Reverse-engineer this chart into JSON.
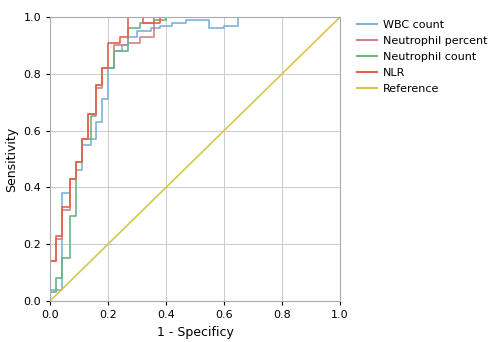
{
  "title": "",
  "xlabel": "1 - Specificy",
  "ylabel": "Sensitivity",
  "xlim": [
    0.0,
    1.0
  ],
  "ylim": [
    0.0,
    1.0
  ],
  "xticks": [
    0.0,
    0.2,
    0.4,
    0.6,
    0.8,
    1.0
  ],
  "yticks": [
    0.0,
    0.2,
    0.4,
    0.6,
    0.8,
    1.0
  ],
  "legend_labels": [
    "WBC count",
    "Neutrophil percent",
    "Neutrophil count",
    "NLR",
    "Reference"
  ],
  "colors": {
    "WBC count": "#7eb3d8",
    "Neutrophil percent": "#d4808a",
    "Neutrophil count": "#6ab580",
    "NLR": "#e8614a",
    "Reference": "#d4c84a"
  },
  "background_color": "#ffffff",
  "grid_color": "#cccccc",
  "wbc_fpr": [
    0.0,
    0.0,
    0.04,
    0.04,
    0.07,
    0.07,
    0.09,
    0.09,
    0.11,
    0.11,
    0.14,
    0.14,
    0.16,
    0.16,
    0.18,
    0.18,
    0.2,
    0.2,
    0.22,
    0.22,
    0.25,
    0.25,
    0.27,
    0.27,
    0.3,
    0.3,
    0.35,
    0.35,
    0.38,
    0.38,
    0.42,
    0.42,
    0.47,
    0.47,
    0.55,
    0.55,
    0.6,
    0.6,
    0.65,
    0.65,
    1.0,
    1.0
  ],
  "wbc_tpr": [
    0.0,
    0.04,
    0.04,
    0.38,
    0.38,
    0.43,
    0.43,
    0.46,
    0.46,
    0.55,
    0.55,
    0.57,
    0.57,
    0.63,
    0.63,
    0.71,
    0.71,
    0.82,
    0.82,
    0.88,
    0.88,
    0.9,
    0.9,
    0.93,
    0.93,
    0.95,
    0.95,
    0.96,
    0.96,
    0.97,
    0.97,
    0.98,
    0.98,
    0.99,
    0.99,
    0.96,
    0.96,
    0.97,
    0.97,
    1.0,
    1.0,
    1.0
  ],
  "neut_pct_fpr": [
    0.0,
    0.0,
    0.02,
    0.02,
    0.04,
    0.04,
    0.07,
    0.07,
    0.09,
    0.09,
    0.11,
    0.11,
    0.13,
    0.13,
    0.16,
    0.16,
    0.18,
    0.18,
    0.22,
    0.22,
    0.27,
    0.27,
    0.31,
    0.31,
    0.36,
    0.36,
    1.0,
    1.0
  ],
  "neut_pct_tpr": [
    0.0,
    0.14,
    0.14,
    0.22,
    0.22,
    0.32,
    0.32,
    0.43,
    0.43,
    0.49,
    0.49,
    0.57,
    0.57,
    0.66,
    0.66,
    0.75,
    0.75,
    0.82,
    0.82,
    0.9,
    0.9,
    0.91,
    0.91,
    0.93,
    0.93,
    1.0,
    1.0,
    1.0
  ],
  "neut_cnt_fpr": [
    0.0,
    0.0,
    0.02,
    0.02,
    0.04,
    0.04,
    0.07,
    0.07,
    0.09,
    0.09,
    0.11,
    0.11,
    0.14,
    0.14,
    0.16,
    0.16,
    0.18,
    0.18,
    0.22,
    0.22,
    0.27,
    0.27,
    0.31,
    0.31,
    0.36,
    0.36,
    0.4,
    0.4,
    1.0,
    1.0
  ],
  "neut_cnt_tpr": [
    0.0,
    0.03,
    0.03,
    0.08,
    0.08,
    0.15,
    0.15,
    0.3,
    0.3,
    0.49,
    0.49,
    0.57,
    0.57,
    0.65,
    0.65,
    0.76,
    0.76,
    0.82,
    0.82,
    0.88,
    0.88,
    0.96,
    0.96,
    0.98,
    0.98,
    0.99,
    0.99,
    1.0,
    1.0,
    1.0
  ],
  "nlr_fpr": [
    0.0,
    0.0,
    0.02,
    0.02,
    0.04,
    0.04,
    0.07,
    0.07,
    0.09,
    0.09,
    0.11,
    0.11,
    0.13,
    0.13,
    0.16,
    0.16,
    0.18,
    0.18,
    0.2,
    0.2,
    0.24,
    0.24,
    0.27,
    0.27,
    0.32,
    0.32,
    0.38,
    0.38,
    1.0,
    1.0
  ],
  "nlr_tpr": [
    0.0,
    0.14,
    0.14,
    0.23,
    0.23,
    0.33,
    0.33,
    0.43,
    0.43,
    0.49,
    0.49,
    0.57,
    0.57,
    0.66,
    0.66,
    0.76,
    0.76,
    0.82,
    0.82,
    0.91,
    0.91,
    0.93,
    0.93,
    1.0,
    1.0,
    0.98,
    0.98,
    1.0,
    1.0,
    1.0
  ],
  "figsize": [
    5.0,
    3.42
  ],
  "dpi": 100
}
